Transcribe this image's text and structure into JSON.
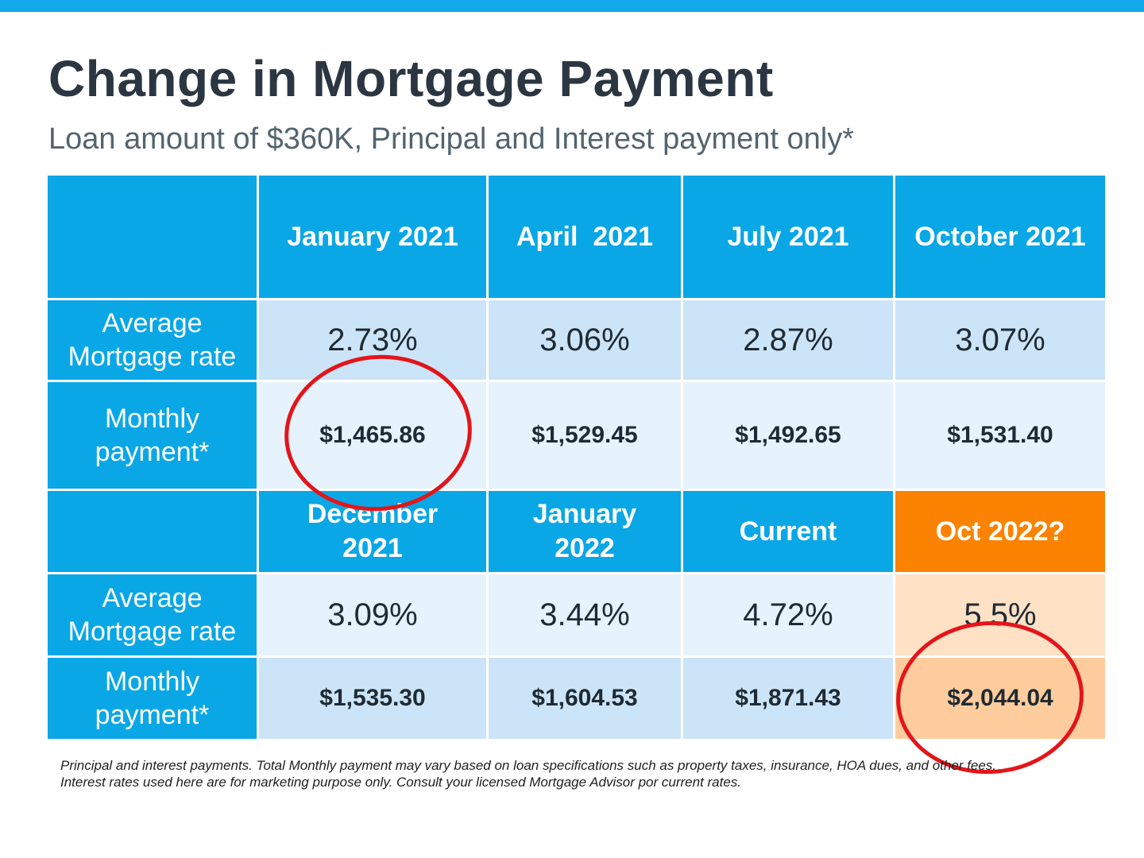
{
  "title": "Change in Mortgage Payment",
  "subtitle": "Loan amount of $360K, Principal and Interest payment only*",
  "labels": {
    "rate": "Average Mortgage rate",
    "payment": "Monthly payment*"
  },
  "section1": {
    "periods": [
      "January 2021",
      "April  2021",
      "July 2021",
      "October 2021"
    ],
    "rates": [
      "2.73%",
      "3.06%",
      "2.87%",
      "3.07%"
    ],
    "payments": [
      "$1,465.86",
      "$1,529.45",
      "$1,492.65",
      "$1,531.40"
    ]
  },
  "section2": {
    "periods": [
      "December 2021",
      "January 2022",
      "Current",
      "Oct 2022?"
    ],
    "rates": [
      "3.09%",
      "3.44%",
      "4.72%",
      "5.5%"
    ],
    "payments": [
      "$1,535.30",
      "$1,604.53",
      "$1,871.43",
      "$2,044.04"
    ]
  },
  "footnote": {
    "lead": "Principal and interest payments.",
    "line1_rest": " Total Monthly payment may vary based on loan specifications such as property taxes, insurance, HOA dues, and other fees.",
    "line2": "Interest rates used here are for marketing purpose only. Consult your licensed Mortgage Advisor por current rates."
  },
  "colors": {
    "header_blue": "#0aa7e6",
    "highlight_orange": "#fc8301",
    "annotation_red": "#e3151a"
  }
}
